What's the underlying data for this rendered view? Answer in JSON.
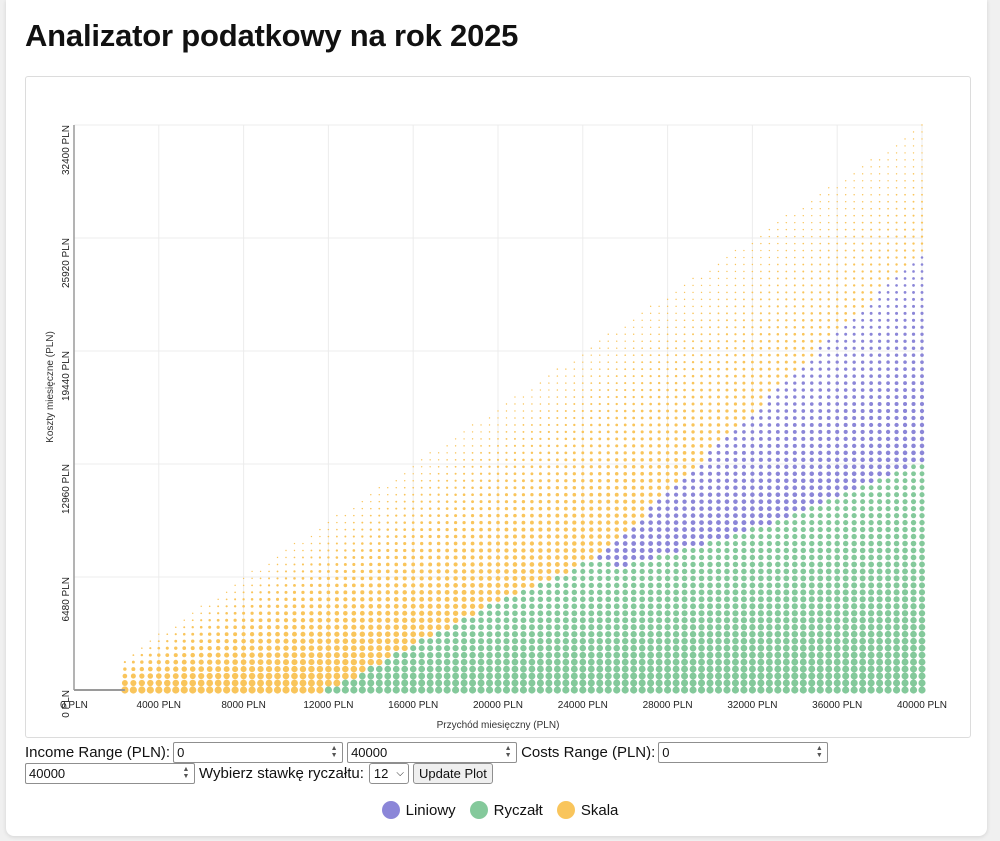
{
  "page": {
    "title": "Analizator podatkowy na rok 2025"
  },
  "controls": {
    "income_label": "Income Range (PLN):",
    "income_min": "0",
    "income_max": "40000",
    "costs_label": "Costs Range (PLN):",
    "costs_min": "0",
    "costs_max": "40000",
    "rate_label": "Wybierz stawkę ryczałtu:",
    "rate_value": "12",
    "update_label": "Update Plot"
  },
  "chart_data": {
    "type": "scatter",
    "xlabel": "Przychód miesięczny (PLN)",
    "ylabel": "Koszty miesięczne (PLN)",
    "xlim": [
      0,
      40000
    ],
    "ylim": [
      0,
      32400
    ],
    "x_ticks": [
      "0 PLN",
      "4000 PLN",
      "8000 PLN",
      "12000 PLN",
      "16000 PLN",
      "20000 PLN",
      "24000 PLN",
      "28000 PLN",
      "32000 PLN",
      "36000 PLN",
      "40000 PLN"
    ],
    "x_tick_values": [
      0,
      4000,
      8000,
      12000,
      16000,
      20000,
      24000,
      28000,
      32000,
      36000,
      40000
    ],
    "y_ticks": [
      "0 PLN",
      "6480 PLN",
      "12960 PLN",
      "19440 PLN",
      "25920 PLN",
      "32400 PLN"
    ],
    "y_tick_values": [
      0,
      6480,
      12960,
      19440,
      25920,
      32400
    ],
    "grid": true,
    "legend_position": "bottom-center",
    "grid_step": {
      "x": 400,
      "y": 400
    },
    "domain": "costs <= 0.81 * income",
    "series": [
      {
        "name": "Liniowy",
        "color": "#8b86d8",
        "region": "above Ryczałt boundary, below Skala boundary (income > ~24800 PLN)"
      },
      {
        "name": "Ryczałt",
        "color": "#84c99b",
        "region": "low costs, income > ~12000 PLN"
      },
      {
        "name": "Skala",
        "color": "#f9c55c",
        "region": "high costs relative to income, and low income"
      }
    ],
    "boundaries": {
      "ryczalt_upper": [
        [
          12000,
          0
        ],
        [
          20000,
          5100
        ],
        [
          24000,
          7200
        ],
        [
          25000,
          7600
        ],
        [
          25400,
          6900
        ],
        [
          30000,
          8400
        ],
        [
          34000,
          10100
        ],
        [
          40000,
          13000
        ]
      ],
      "skala_lower": [
        [
          24800,
          7700
        ],
        [
          40000,
          25100
        ]
      ]
    }
  },
  "legend": [
    {
      "name": "Liniowy",
      "color": "#8b86d8"
    },
    {
      "name": "Ryczałt",
      "color": "#84c99b"
    },
    {
      "name": "Skala",
      "color": "#f9c55c"
    }
  ]
}
